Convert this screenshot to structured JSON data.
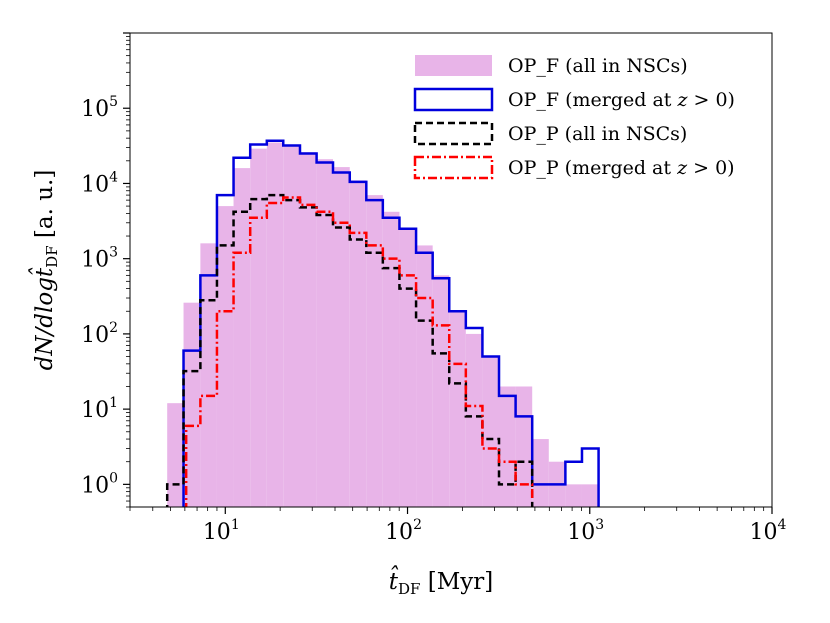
{
  "chart_data": {
    "type": "histogram",
    "xscale": "log",
    "yscale": "log",
    "xlim": [
      3,
      10000
    ],
    "ylim": [
      0.5,
      1000000
    ],
    "x_ticks": [
      {
        "base": "10",
        "exp": "1",
        "value": 10
      },
      {
        "base": "10",
        "exp": "2",
        "value": 100
      },
      {
        "base": "10",
        "exp": "3",
        "value": 1000
      },
      {
        "base": "10",
        "exp": "4",
        "value": 10000
      }
    ],
    "y_ticks": [
      {
        "base": "10",
        "exp": "0",
        "value": 1
      },
      {
        "base": "10",
        "exp": "1",
        "value": 10
      },
      {
        "base": "10",
        "exp": "2",
        "value": 100
      },
      {
        "base": "10",
        "exp": "3",
        "value": 1000
      },
      {
        "base": "10",
        "exp": "4",
        "value": 10000
      },
      {
        "base": "10",
        "exp": "5",
        "value": 100000
      }
    ],
    "xlabel": {
      "main": "t̂",
      "sub": "DF",
      "unit": " [Myr]"
    },
    "ylabel": {
      "pre": "dN/dlogt̂",
      "sub": "DF",
      "unit": " [a. u.]"
    },
    "legend_position": "upper right",
    "series": [
      {
        "name": "OP_F (all in NSCs)",
        "style": "filled",
        "color": "#e8b4e8",
        "edges": [
          4.8,
          5.9,
          7.3,
          9.0,
          11.1,
          13.7,
          16.9,
          20.8,
          25.7,
          31.7,
          39.0,
          48.2,
          59.4,
          73.2,
          90.3,
          111.4,
          137.4,
          169.4,
          208.9,
          257.6,
          317.7,
          391.8,
          483.2,
          595.9,
          734.9,
          906.3,
          1117.7,
          1378.5
        ],
        "values": [
          12,
          260,
          1600,
          5000,
          16000,
          29000,
          35000,
          33000,
          26000,
          21000,
          16500,
          11000,
          7000,
          4200,
          2500,
          1500,
          600,
          200,
          100,
          50,
          20,
          20,
          4,
          2,
          1,
          1,
          0
        ]
      },
      {
        "name": "OP_F (merged at z > 0)",
        "style": "step",
        "color": "#0000dd",
        "dash": "",
        "edges": [
          4.8,
          5.9,
          7.3,
          9.0,
          11.1,
          13.7,
          16.9,
          20.8,
          25.7,
          31.7,
          39.0,
          48.2,
          59.4,
          73.2,
          90.3,
          111.4,
          137.4,
          169.4,
          208.9,
          257.6,
          317.7,
          391.8,
          483.2,
          595.9,
          734.9,
          906.3,
          1117.7,
          1378.5
        ],
        "values": [
          0.3,
          60,
          600,
          7000,
          22000,
          33000,
          37000,
          32000,
          25000,
          19000,
          14000,
          10500,
          6000,
          3500,
          2500,
          1200,
          550,
          200,
          120,
          50,
          15,
          8,
          1,
          1,
          2,
          3,
          0.3
        ]
      },
      {
        "name": "OP_P (all in NSCs)",
        "style": "step",
        "color": "#000000",
        "dash": "7,4",
        "edges": [
          4.8,
          5.9,
          7.3,
          9.0,
          11.1,
          13.7,
          16.9,
          20.8,
          25.7,
          31.7,
          39.0,
          48.2,
          59.4,
          73.2,
          90.3,
          111.4,
          137.4,
          169.4,
          208.9,
          257.6,
          317.7,
          391.8,
          483.2,
          595.9
        ],
        "values": [
          1,
          32,
          280,
          1500,
          4200,
          6200,
          7000,
          6000,
          4800,
          3800,
          2600,
          1800,
          1200,
          750,
          400,
          150,
          55,
          22,
          8,
          4,
          1,
          2,
          0.3
        ]
      },
      {
        "name": "OP_P (merged at z > 0)",
        "style": "step",
        "color": "#ff0000",
        "dash": "9,3,2,3",
        "edges": [
          6.1,
          7.3,
          9.0,
          11.1,
          13.7,
          16.9,
          20.8,
          25.7,
          31.7,
          39.0,
          48.2,
          59.4,
          73.2,
          90.3,
          111.4,
          137.4,
          169.4,
          208.9,
          257.6,
          317.7,
          391.8,
          483.2
        ],
        "values": [
          6,
          15,
          200,
          1200,
          3500,
          5500,
          6500,
          5200,
          4200,
          3000,
          2200,
          1500,
          1000,
          600,
          300,
          130,
          40,
          11,
          3,
          2,
          1,
          0.6
        ]
      }
    ]
  },
  "legend": {
    "entries": [
      {
        "pre": "OP_F (all in NSCs)",
        "z": "",
        "post": ""
      },
      {
        "pre": "OP_F (merged at ",
        "z": "z",
        "post": " > 0)"
      },
      {
        "pre": "OP_P (all in NSCs)",
        "z": "",
        "post": ""
      },
      {
        "pre": "OP_P (merged at ",
        "z": "z",
        "post": " > 0)"
      }
    ]
  }
}
